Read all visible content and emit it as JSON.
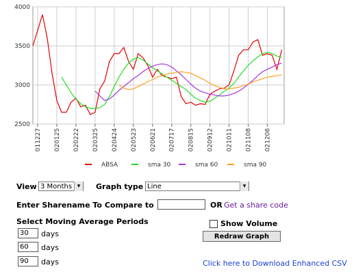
{
  "chart_data": {
    "type": "line",
    "categories": [
      null,
      "011227",
      null,
      null,
      null,
      "020125",
      null,
      null,
      null,
      "020222",
      null,
      null,
      null,
      "020325",
      null,
      null,
      null,
      "020424",
      null,
      null,
      null,
      "020523",
      null,
      null,
      null,
      "020621",
      null,
      null,
      null,
      "020717",
      null,
      null,
      null,
      "020815",
      null,
      null,
      null,
      "020912",
      null,
      null,
      null,
      "021011",
      null,
      null,
      null,
      "021108",
      null,
      null,
      null,
      "021206",
      null,
      null,
      null
    ],
    "ylim": [
      2500,
      4000
    ],
    "yticks": [
      2500,
      3000,
      3500,
      4000
    ],
    "grid": true,
    "series": [
      {
        "name": "ABSA",
        "color": "#e00000",
        "values": [
          3500,
          3700,
          3900,
          3600,
          3150,
          2800,
          2650,
          2650,
          2780,
          2830,
          2720,
          2740,
          2620,
          2650,
          2950,
          3050,
          3300,
          3400,
          3400,
          3480,
          3300,
          3200,
          3400,
          3350,
          3250,
          3100,
          3200,
          3120,
          3100,
          3080,
          3100,
          2850,
          2760,
          2780,
          2740,
          2760,
          2750,
          2880,
          2920,
          2950,
          2960,
          3000,
          3180,
          3380,
          3450,
          3450,
          3550,
          3580,
          3380,
          3400,
          3380,
          3200,
          3450
        ]
      },
      {
        "name": "sma 30",
        "color": "#22dd22",
        "values": [
          null,
          null,
          null,
          null,
          null,
          null,
          3100,
          3000,
          2900,
          2820,
          2760,
          2720,
          2700,
          2700,
          2710,
          2750,
          2850,
          2980,
          3100,
          3200,
          3280,
          3330,
          3350,
          3320,
          3270,
          3220,
          3180,
          3140,
          3100,
          3060,
          3020,
          2980,
          2940,
          2880,
          2830,
          2800,
          2780,
          2790,
          2830,
          2870,
          2920,
          2960,
          3020,
          3100,
          3180,
          3250,
          3310,
          3360,
          3400,
          3420,
          3400,
          3370,
          3350
        ]
      },
      {
        "name": "sma 60",
        "color": "#aa33dd",
        "values": [
          null,
          null,
          null,
          null,
          null,
          null,
          null,
          null,
          null,
          null,
          null,
          null,
          null,
          2920,
          2860,
          2800,
          2820,
          2870,
          2930,
          2980,
          3030,
          3080,
          3120,
          3170,
          3210,
          3240,
          3260,
          3270,
          3260,
          3230,
          3180,
          3130,
          3070,
          3010,
          2960,
          2920,
          2900,
          2880,
          2870,
          2860,
          2860,
          2870,
          2890,
          2920,
          2960,
          3010,
          3060,
          3120,
          3170,
          3200,
          3230,
          3260,
          3280
        ]
      },
      {
        "name": "sma 90",
        "color": "#ffa020",
        "values": [
          null,
          null,
          null,
          null,
          null,
          null,
          null,
          null,
          null,
          null,
          null,
          null,
          null,
          null,
          null,
          null,
          null,
          null,
          3000,
          2960,
          2940,
          2950,
          2980,
          3010,
          3040,
          3070,
          3100,
          3120,
          3140,
          3150,
          3160,
          3170,
          3160,
          3150,
          3120,
          3090,
          3060,
          3020,
          2990,
          2970,
          2950,
          2950,
          2960,
          2970,
          2990,
          3010,
          3040,
          3060,
          3080,
          3100,
          3110,
          3120,
          3130
        ]
      }
    ]
  },
  "form": {
    "view_label": "View",
    "view_value": "3 Months",
    "graph_type_label": "Graph type",
    "graph_type_value": "Line",
    "compare_label": "Enter Sharename To Compare to",
    "or": "OR",
    "share_code_link": "Get a share code",
    "ma_label": "Select Moving Average Periods",
    "periods": [
      "30",
      "60",
      "90"
    ],
    "days": "days",
    "show_volume": "Show Volume",
    "redraw": "Redraw Graph",
    "csv_link": "Click here to Download Enhanced CSV"
  }
}
